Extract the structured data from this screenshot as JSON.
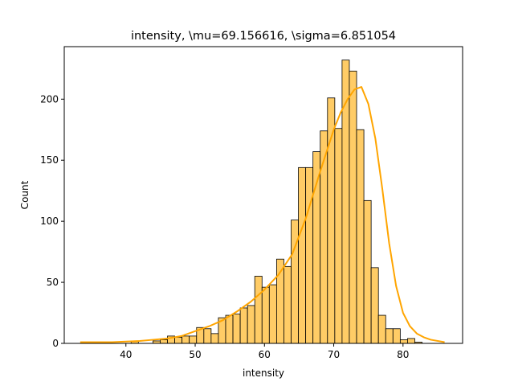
{
  "chart_data": {
    "type": "bar",
    "title": "intensity, \\mu=69.156616, \\sigma=6.851054",
    "xlabel": "intensity",
    "ylabel": "Count",
    "xlim": [
      31.1,
      88.6
    ],
    "ylim": [
      0,
      243
    ],
    "xticks": [
      40,
      50,
      60,
      70,
      80
    ],
    "yticks": [
      0,
      50,
      100,
      150,
      200
    ],
    "bin_start": 33.4,
    "bin_width": 1.05,
    "counts": [
      0,
      0,
      0,
      0,
      0,
      0,
      0,
      2,
      0,
      0,
      2,
      3,
      6,
      5,
      6,
      6,
      13,
      12,
      8,
      21,
      23,
      24,
      29,
      31,
      55,
      46,
      48,
      69,
      63,
      101,
      144,
      144,
      157,
      174,
      201,
      176,
      232,
      223,
      175,
      117,
      62,
      23,
      12,
      12,
      3,
      4,
      1
    ],
    "kde": {
      "x": [
        33.4,
        36,
        38,
        40,
        42,
        44,
        46,
        48,
        50,
        52,
        54,
        56,
        58,
        60,
        62,
        64,
        66,
        68,
        70,
        71,
        72,
        73,
        74,
        75,
        76,
        77,
        78,
        79,
        80,
        81,
        82,
        83,
        84,
        86
      ],
      "y": [
        1,
        1,
        1,
        1.5,
        2,
        3,
        4,
        6,
        10,
        14,
        19,
        26,
        34,
        44,
        56,
        73,
        103,
        140,
        175,
        189,
        200,
        208,
        210,
        196,
        168,
        127,
        82,
        47,
        25,
        14,
        8,
        5,
        3,
        1
      ]
    },
    "bar_color": "#ffcc66",
    "bar_edge_color": "#000000",
    "kde_color": "#ffa500",
    "grid": false,
    "legend": "none"
  }
}
